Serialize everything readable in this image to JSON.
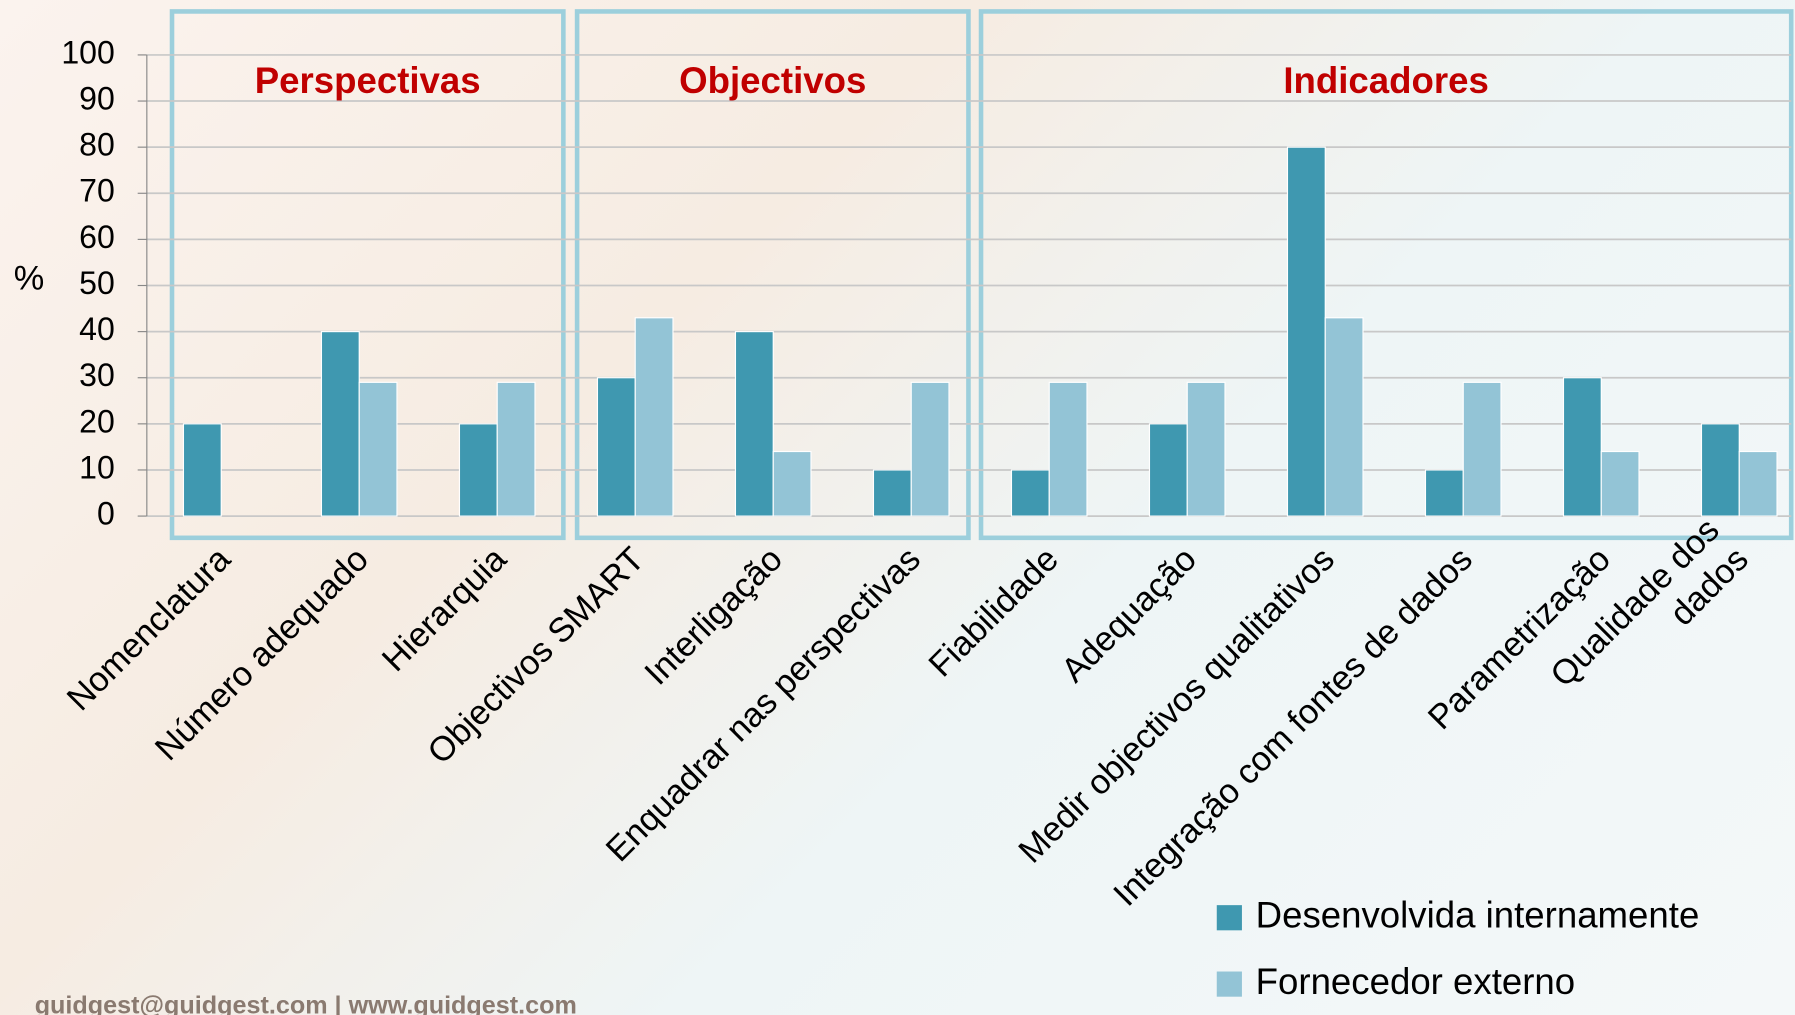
{
  "chart_data": {
    "type": "bar",
    "categories": [
      "Nomenclatura",
      "Número adequado",
      "Hierarquia",
      "Objectivos SMART",
      "Interligação",
      "Enquadrar nas perspectivas",
      "Fiabilidade",
      "Adequação",
      "Medir objectivos qualitativos",
      "Integração com fontes de dados",
      "Parametrização",
      [
        "Qualidade dos",
        "dados"
      ]
    ],
    "series": [
      {
        "name": "Desenvolvida internamente",
        "color": "#3f98b0",
        "values": [
          20,
          40,
          20,
          30,
          40,
          10,
          10,
          20,
          80,
          10,
          30,
          20
        ]
      },
      {
        "name": "Fornecedor externo",
        "color": "#93c4d6",
        "values": [
          0,
          29,
          29,
          43,
          14,
          29,
          29,
          29,
          43,
          29,
          14,
          14
        ]
      }
    ],
    "y_label": "%",
    "ylim": [
      0,
      100
    ],
    "yticks": [
      0,
      10,
      20,
      30,
      40,
      50,
      60,
      70,
      80,
      90,
      100
    ],
    "grid": true,
    "groups": [
      {
        "title": "Perspectivas",
        "color": "#c00000"
      },
      {
        "title": "Objectivos",
        "color": "#c00000"
      },
      {
        "title": "Indicadores",
        "color": "#c00000"
      }
    ],
    "footer": "guidgest@guidgest.com | www.guidgest.com"
  }
}
